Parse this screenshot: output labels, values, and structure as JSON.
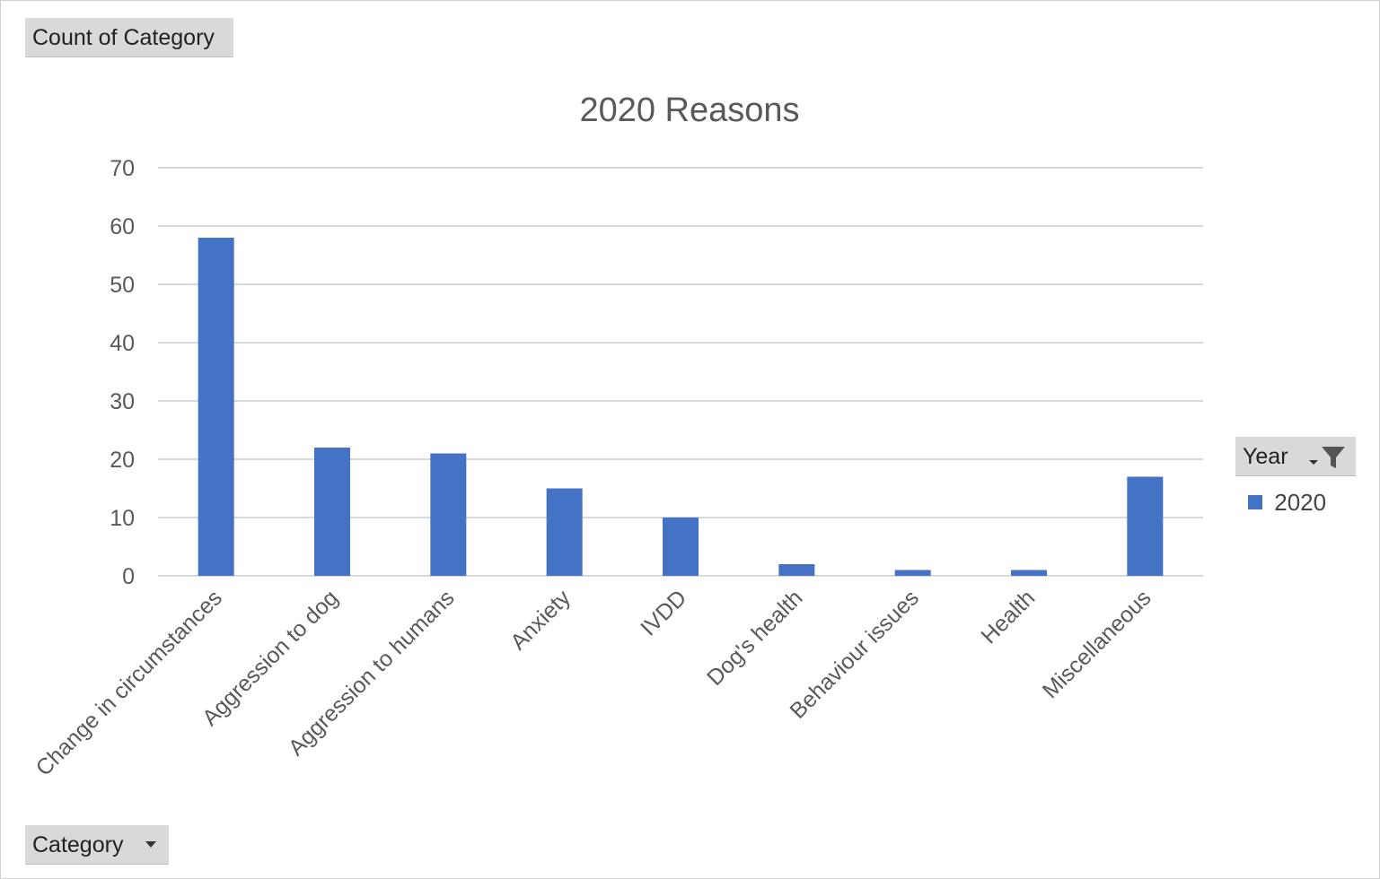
{
  "pivot_fields": {
    "value_field": "Count of Category",
    "axis_field": "Category",
    "legend_field": "Year"
  },
  "icons": {
    "filter": "filter-icon",
    "dropdown": "chevron-down-icon"
  },
  "colors": {
    "bar": "#4472C4",
    "grid": "#d9d9d9",
    "text": "#595959"
  },
  "chart_data": {
    "type": "bar",
    "title": "2020 Reasons",
    "xlabel": "",
    "ylabel": "",
    "categories": [
      "Change in circumstances",
      "Aggression to dog",
      "Aggression to humans",
      "Anxiety",
      "IVDD",
      "Dog's health",
      "Behaviour issues",
      "Health",
      "Miscellaneous"
    ],
    "series": [
      {
        "name": "2020",
        "values": [
          58,
          22,
          21,
          15,
          10,
          2,
          1,
          1,
          17
        ]
      }
    ],
    "ylim": [
      0,
      70
    ],
    "yticks": [
      "0",
      "10",
      "20",
      "30",
      "40",
      "50",
      "60",
      "70"
    ],
    "grid": true,
    "legend_position": "right"
  }
}
